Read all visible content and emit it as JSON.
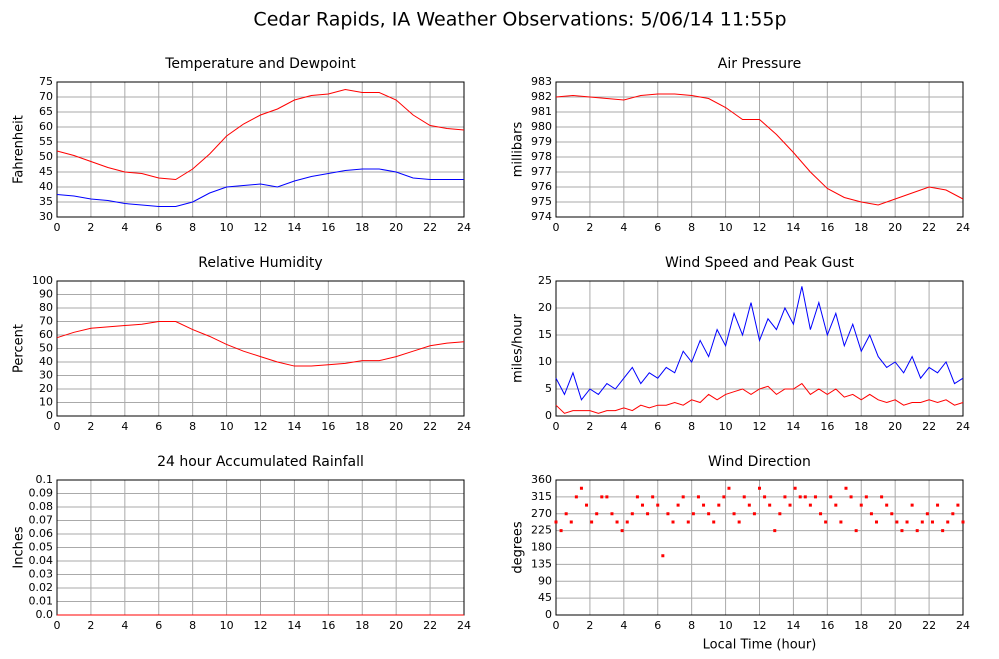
{
  "title": "Cedar Rapids, IA Weather Observations: 5/06/14 11:55p",
  "chart_data": [
    {
      "type": "line",
      "title": "Temperature and Dewpoint",
      "ylabel": "Fahrenheit",
      "x": [
        0,
        1,
        2,
        3,
        4,
        5,
        6,
        7,
        8,
        9,
        10,
        11,
        12,
        13,
        14,
        15,
        16,
        17,
        18,
        19,
        20,
        21,
        22,
        23,
        24
      ],
      "series": [
        {
          "color": "#ff0000",
          "values": [
            52,
            50.5,
            48.5,
            46.5,
            45,
            44.5,
            43,
            42.5,
            46,
            51,
            57,
            61,
            64,
            66,
            69,
            70.5,
            71,
            72.5,
            71.5,
            71.5,
            69,
            64,
            60.5,
            59.5,
            59
          ]
        },
        {
          "color": "#0000ff",
          "values": [
            37.5,
            37,
            36,
            35.5,
            34.5,
            34,
            33.5,
            33.5,
            35,
            38,
            40,
            40.5,
            41,
            40,
            42,
            43.5,
            44.5,
            45.5,
            46,
            46,
            45,
            43,
            42.5,
            42.5,
            42.5
          ]
        }
      ],
      "xlim": [
        0,
        24
      ],
      "xticks": [
        0,
        2,
        4,
        6,
        8,
        10,
        12,
        14,
        16,
        18,
        20,
        22,
        24
      ],
      "ylim": [
        30,
        75
      ],
      "yticks": [
        30,
        35,
        40,
        45,
        50,
        55,
        60,
        65,
        70,
        75
      ],
      "grid": true
    },
    {
      "type": "line",
      "title": "Air Pressure",
      "ylabel": "millibars",
      "x": [
        0,
        1,
        2,
        3,
        4,
        5,
        6,
        7,
        8,
        9,
        10,
        11,
        12,
        13,
        14,
        15,
        16,
        17,
        18,
        19,
        20,
        21,
        22,
        23,
        24
      ],
      "series": [
        {
          "color": "#ff0000",
          "values": [
            982,
            982.1,
            982,
            981.9,
            981.8,
            982.1,
            982.2,
            982.2,
            982.1,
            981.9,
            981.3,
            980.5,
            980.5,
            979.5,
            978.3,
            977,
            975.9,
            975.3,
            975,
            974.8,
            975.2,
            975.6,
            976,
            975.8,
            975.2
          ]
        }
      ],
      "xlim": [
        0,
        24
      ],
      "xticks": [
        0,
        2,
        4,
        6,
        8,
        10,
        12,
        14,
        16,
        18,
        20,
        22,
        24
      ],
      "ylim": [
        974,
        983
      ],
      "yticks": [
        974,
        975,
        976,
        977,
        978,
        979,
        980,
        981,
        982,
        983
      ],
      "grid": true
    },
    {
      "type": "line",
      "title": "Relative Humidity",
      "ylabel": "Percent",
      "x": [
        0,
        1,
        2,
        3,
        4,
        5,
        6,
        7,
        8,
        9,
        10,
        11,
        12,
        13,
        14,
        15,
        16,
        17,
        18,
        19,
        20,
        21,
        22,
        23,
        24
      ],
      "series": [
        {
          "color": "#ff0000",
          "values": [
            58,
            62,
            65,
            66,
            67,
            68,
            70,
            70,
            64,
            59,
            53,
            48,
            44,
            40,
            37,
            37,
            38,
            39,
            41,
            41,
            44,
            48,
            52,
            54,
            55
          ]
        }
      ],
      "xlim": [
        0,
        24
      ],
      "xticks": [
        0,
        2,
        4,
        6,
        8,
        10,
        12,
        14,
        16,
        18,
        20,
        22,
        24
      ],
      "ylim": [
        0,
        100
      ],
      "yticks": [
        0,
        10,
        20,
        30,
        40,
        50,
        60,
        70,
        80,
        90,
        100
      ],
      "grid": true
    },
    {
      "type": "line",
      "title": "Wind Speed and Peak Gust",
      "ylabel": "miles/hour",
      "x": [
        0,
        0.5,
        1,
        1.5,
        2,
        2.5,
        3,
        3.5,
        4,
        4.5,
        5,
        5.5,
        6,
        6.5,
        7,
        7.5,
        8,
        8.5,
        9,
        9.5,
        10,
        10.5,
        11,
        11.5,
        12,
        12.5,
        13,
        13.5,
        14,
        14.5,
        15,
        15.5,
        16,
        16.5,
        17,
        17.5,
        18,
        18.5,
        19,
        19.5,
        20,
        20.5,
        21,
        21.5,
        22,
        22.5,
        23,
        23.5,
        24
      ],
      "series": [
        {
          "color": "#0000ff",
          "values": [
            7,
            4,
            8,
            3,
            5,
            4,
            6,
            5,
            7,
            9,
            6,
            8,
            7,
            9,
            8,
            12,
            10,
            14,
            11,
            16,
            13,
            19,
            15,
            21,
            14,
            18,
            16,
            20,
            17,
            24,
            16,
            21,
            15,
            19,
            13,
            17,
            12,
            15,
            11,
            9,
            10,
            8,
            11,
            7,
            9,
            8,
            10,
            6,
            7
          ]
        },
        {
          "color": "#ff0000",
          "values": [
            2,
            0.5,
            1,
            1,
            1,
            0.5,
            1,
            1,
            1.5,
            1,
            2,
            1.5,
            2,
            2,
            2.5,
            2,
            3,
            2.5,
            4,
            3,
            4,
            4.5,
            5,
            4,
            5,
            5.5,
            4,
            5,
            5,
            6,
            4,
            5,
            4,
            5,
            3.5,
            4,
            3,
            4,
            3,
            2.5,
            3,
            2,
            2.5,
            2.5,
            3,
            2.5,
            3,
            2,
            2.5
          ]
        }
      ],
      "xlim": [
        0,
        24
      ],
      "xticks": [
        0,
        2,
        4,
        6,
        8,
        10,
        12,
        14,
        16,
        18,
        20,
        22,
        24
      ],
      "ylim": [
        0,
        25
      ],
      "yticks": [
        0,
        5,
        10,
        15,
        20,
        25
      ],
      "grid": true
    },
    {
      "type": "line",
      "title": "24 hour Accumulated Rainfall",
      "ylabel": "Inches",
      "x": [
        0,
        24
      ],
      "series": [
        {
          "color": "#ff0000",
          "values": [
            0,
            0
          ]
        }
      ],
      "xlim": [
        0,
        24
      ],
      "xticks": [
        0,
        2,
        4,
        6,
        8,
        10,
        12,
        14,
        16,
        18,
        20,
        22,
        24
      ],
      "ylim": [
        0,
        0.1
      ],
      "yticks": [
        {
          "value": 0,
          "label": "0.0"
        },
        0.01,
        0.02,
        0.03,
        0.04,
        0.05,
        0.06,
        0.07,
        0.08,
        0.09,
        0.1
      ],
      "grid": true
    },
    {
      "type": "scatter",
      "title": "Wind Direction",
      "ylabel": "degrees",
      "xlabel": "Local Time (hour)",
      "x": [
        0,
        0.3,
        0.6,
        0.9,
        1.2,
        1.5,
        1.8,
        2.1,
        2.4,
        2.7,
        3,
        3.3,
        3.6,
        3.9,
        4.2,
        4.5,
        4.8,
        5.1,
        5.4,
        5.7,
        6,
        6.3,
        6.6,
        6.9,
        7.2,
        7.5,
        7.8,
        8.1,
        8.4,
        8.7,
        9,
        9.3,
        9.6,
        9.9,
        10.2,
        10.5,
        10.8,
        11.1,
        11.4,
        11.7,
        12,
        12.3,
        12.6,
        12.9,
        13.2,
        13.5,
        13.8,
        14.1,
        14.4,
        14.7,
        15,
        15.3,
        15.6,
        15.9,
        16.2,
        16.5,
        16.8,
        17.1,
        17.4,
        17.7,
        18,
        18.3,
        18.6,
        18.9,
        19.2,
        19.5,
        19.8,
        20.1,
        20.4,
        20.7,
        21,
        21.3,
        21.6,
        21.9,
        22.2,
        22.5,
        22.8,
        23.1,
        23.4,
        23.7,
        24
      ],
      "series": [
        {
          "color": "#ff0000",
          "values": [
            248,
            225,
            270,
            248,
            315,
            338,
            293,
            248,
            270,
            315,
            315,
            270,
            248,
            225,
            248,
            270,
            315,
            293,
            270,
            315,
            293,
            158,
            270,
            248,
            293,
            315,
            248,
            270,
            315,
            293,
            270,
            248,
            293,
            315,
            338,
            270,
            248,
            315,
            293,
            270,
            338,
            315,
            293,
            225,
            270,
            315,
            293,
            338,
            315,
            315,
            293,
            315,
            270,
            248,
            315,
            293,
            248,
            338,
            315,
            225,
            293,
            315,
            270,
            248,
            315,
            293,
            270,
            248,
            225,
            248,
            293,
            225,
            248,
            270,
            248,
            293,
            225,
            248,
            270,
            293,
            248
          ]
        }
      ],
      "xlim": [
        0,
        24
      ],
      "xticks": [
        0,
        2,
        4,
        6,
        8,
        10,
        12,
        14,
        16,
        18,
        20,
        22,
        24
      ],
      "ylim": [
        0,
        360
      ],
      "yticks": [
        0,
        45,
        90,
        135,
        180,
        225,
        270,
        315,
        360
      ],
      "grid": true
    }
  ]
}
